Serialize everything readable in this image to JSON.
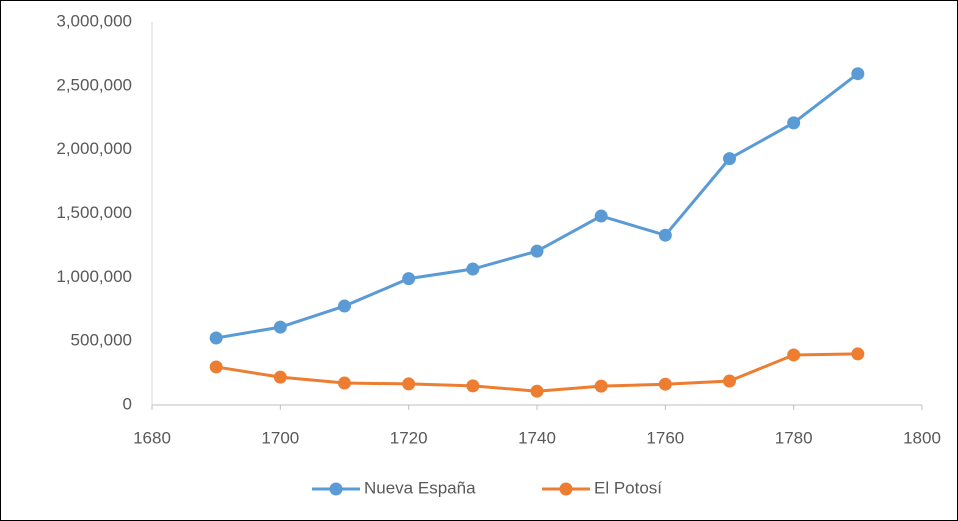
{
  "chart_data": {
    "type": "line",
    "x": [
      1690,
      1700,
      1710,
      1720,
      1730,
      1740,
      1750,
      1760,
      1770,
      1780,
      1790
    ],
    "series": [
      {
        "name": "Nueva España",
        "color": "#5b9bd5",
        "values": [
          525000,
          610000,
          775000,
          990000,
          1065000,
          1205000,
          1480000,
          1330000,
          1930000,
          2210000,
          2595000
        ]
      },
      {
        "name": "El Potosí",
        "color": "#ed7d31",
        "values": [
          298000,
          218000,
          172000,
          165000,
          150000,
          108000,
          148000,
          163000,
          188000,
          392000,
          400000
        ]
      }
    ],
    "xlim": [
      1680,
      1800
    ],
    "xticks": [
      1680,
      1700,
      1720,
      1740,
      1760,
      1780,
      1800
    ],
    "ylim": [
      0,
      3000000
    ],
    "yticks": [
      0,
      {
        "value": 500000,
        "label": "500,000"
      },
      {
        "value": 1000000,
        "label": "1,000,000"
      },
      {
        "value": 1500000,
        "label": "1,500,000"
      },
      {
        "value": 2000000,
        "label": "2,000,000"
      },
      {
        "value": 2500000,
        "label": "2,500,000"
      },
      {
        "value": 3000000,
        "label": "3,000,000"
      }
    ],
    "grid": false,
    "legend": "bottom"
  }
}
